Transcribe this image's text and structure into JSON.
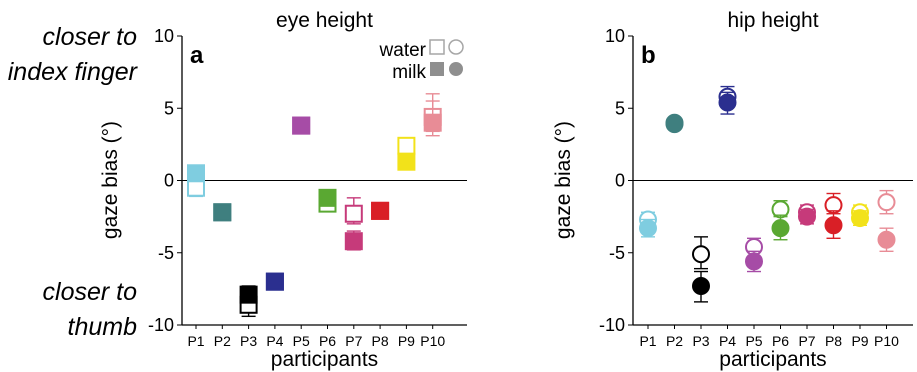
{
  "side_labels": {
    "top_line1": "closer to",
    "top_line2": "index finger",
    "bottom_line1": "closer to",
    "bottom_line2": "thumb"
  },
  "legend": {
    "water_label": "water",
    "milk_label": "milk",
    "water_style": "open (hollow) markers",
    "milk_style": "filled markers"
  },
  "chart_data": [
    {
      "type": "scatter",
      "panel_label": "a",
      "title": "eye height",
      "xlabel": "participants",
      "ylabel": "gaze bias (°)",
      "marker": "square",
      "categories": [
        "P1",
        "P2",
        "P3",
        "P4",
        "P5",
        "P6",
        "P7",
        "P8",
        "P9",
        "P10"
      ],
      "ylim": [
        -10,
        10
      ],
      "yticks": [
        -10,
        -5,
        0,
        5,
        10
      ],
      "ytick_labels": [
        "-10",
        "-5",
        "0",
        "5",
        "10"
      ],
      "zero_line": true,
      "grid": false,
      "legend_position": "top-right",
      "colors": [
        "#7fcde0",
        "#3f7f7f",
        "#000000",
        "#2b2f8f",
        "#a64ca6",
        "#5aa832",
        "#c63a7a",
        "#d91f26",
        "#f2e21a",
        "#e88c96"
      ],
      "series": [
        {
          "name": "water",
          "values": [
            -0.5,
            -2.2,
            -8.6,
            -7.0,
            3.8,
            -1.6,
            -2.3,
            -2.1,
            2.4,
            4.4
          ],
          "err_low": [
            -1.1,
            -2.6,
            -9.4,
            -7.4,
            3.4,
            -2.0,
            -3.0,
            -2.4,
            1.9,
            3.4
          ],
          "err_high": [
            0.1,
            -1.8,
            -7.9,
            -6.6,
            4.2,
            -1.1,
            -1.2,
            -1.7,
            2.9,
            5.5
          ]
        },
        {
          "name": "milk",
          "values": [
            0.5,
            -2.2,
            -7.9,
            -7.0,
            3.8,
            -1.2,
            -4.2,
            -2.1,
            1.3,
            4.0
          ],
          "err_low": [
            0.0,
            -2.5,
            -8.4,
            -7.4,
            3.4,
            -1.6,
            -4.8,
            -2.5,
            0.9,
            3.1
          ],
          "err_high": [
            1.0,
            -1.9,
            -7.3,
            -6.6,
            4.2,
            -0.7,
            -3.5,
            -1.7,
            1.7,
            6.0
          ]
        }
      ]
    },
    {
      "type": "scatter",
      "panel_label": "b",
      "title": "hip height",
      "xlabel": "participants",
      "ylabel": "gaze bias (°)",
      "marker": "circle",
      "categories": [
        "P1",
        "P2",
        "P3",
        "P4",
        "P5",
        "P6",
        "P7",
        "P8",
        "P9",
        "P10"
      ],
      "ylim": [
        -10,
        10
      ],
      "yticks": [
        -10,
        -5,
        0,
        5,
        10
      ],
      "ytick_labels": [
        "-10",
        "-5",
        "0",
        "5",
        "10"
      ],
      "zero_line": true,
      "grid": false,
      "colors": [
        "#7fcde0",
        "#3f7f7f",
        "#000000",
        "#2b2f8f",
        "#a64ca6",
        "#5aa832",
        "#c63a7a",
        "#d91f26",
        "#f2e21a",
        "#e88c96"
      ],
      "series": [
        {
          "name": "water",
          "values": [
            -2.7,
            4.0,
            -5.1,
            5.8,
            -4.6,
            -2.0,
            -2.2,
            -1.7,
            -2.2,
            -1.5
          ],
          "err_low": [
            -3.2,
            3.7,
            -6.1,
            5.2,
            -5.3,
            -2.5,
            -2.6,
            -2.3,
            -2.7,
            -2.3
          ],
          "err_high": [
            -2.2,
            4.3,
            -3.9,
            6.5,
            -4.0,
            -1.4,
            -1.7,
            -0.9,
            -1.7,
            -0.7
          ]
        },
        {
          "name": "milk",
          "values": [
            -3.3,
            3.9,
            -7.3,
            5.4,
            -5.6,
            -3.3,
            -2.5,
            -3.1,
            -2.6,
            -4.1
          ],
          "err_low": [
            -3.9,
            3.6,
            -8.4,
            4.6,
            -6.3,
            -4.1,
            -3.0,
            -4.0,
            -3.1,
            -4.9
          ],
          "err_high": [
            -2.7,
            4.2,
            -6.3,
            6.1,
            -4.9,
            -2.4,
            -2.0,
            -2.1,
            -2.1,
            -3.3
          ]
        }
      ]
    }
  ]
}
